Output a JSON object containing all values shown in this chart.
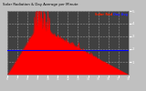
{
  "title": "Solar Radiation & Day Average per Minute",
  "fig_bg_color": "#c0c0c0",
  "plot_bg": "#404040",
  "grid_color": "#ffffff",
  "area_color": "#ff0000",
  "avg_line_color": "#0000ff",
  "text_color": "#ffffff",
  "title_color": "#000000",
  "ylim": [
    0,
    500
  ],
  "yticks": [
    100,
    200,
    300,
    400,
    500
  ],
  "ytick_labels": [
    "1",
    "2",
    "3",
    "4",
    "5"
  ],
  "avg_value": 190,
  "legend_labels": [
    "Solar Rad",
    "Day Avg"
  ],
  "legend_colors": [
    "#ff2200",
    "#2222ff"
  ],
  "n_points": 720,
  "peak_index": 200,
  "peak_value": 420
}
